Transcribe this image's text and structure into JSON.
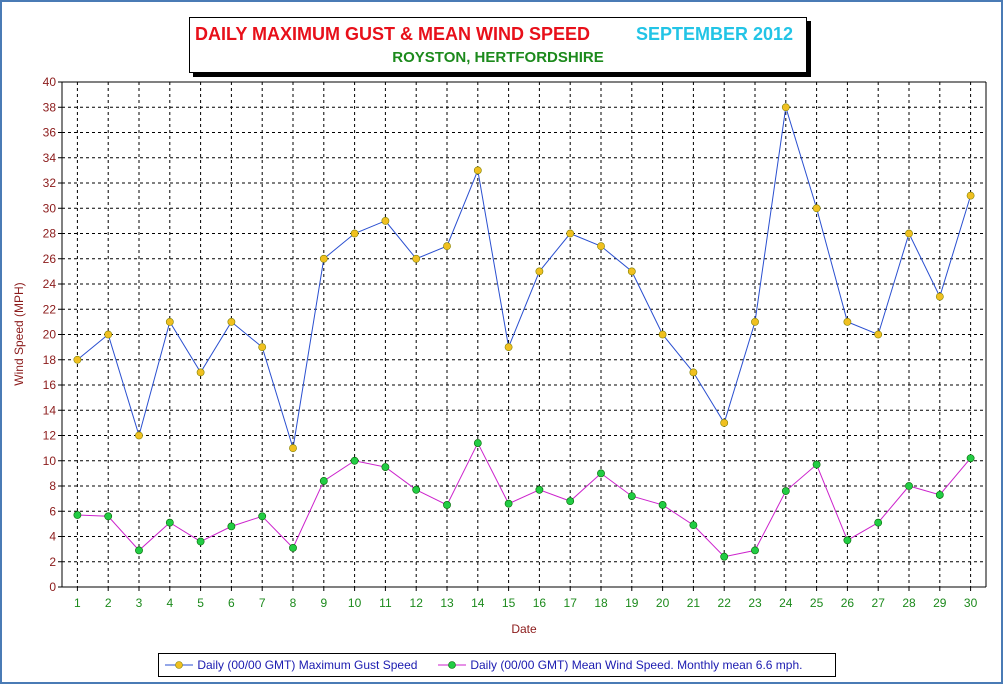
{
  "title": {
    "main": "DAILY MAXIMUM GUST & MEAN WIND SPEED",
    "month": "SEPTEMBER 2012",
    "location": "ROYSTON, HERTFORDSHIRE"
  },
  "colors": {
    "gust_line": "#2a4fd0",
    "mean_line": "#cc22cc",
    "gust_marker": "#f0c020",
    "mean_marker": "#22cc44",
    "grid": "#000000",
    "tick_y": "#8b1a1a",
    "tick_x": "#1c8a1c",
    "legend_text": "#1a1ab0"
  },
  "chart_data": {
    "type": "line",
    "xlabel": "Date",
    "ylabel": "Wind Speed (MPH)",
    "ylim": [
      0,
      40
    ],
    "yticks": [
      0,
      2,
      4,
      6,
      8,
      10,
      12,
      14,
      16,
      18,
      20,
      22,
      24,
      26,
      28,
      30,
      32,
      34,
      36,
      38,
      40
    ],
    "grid": true,
    "legend_position": "bottom",
    "x": [
      1,
      2,
      3,
      4,
      5,
      6,
      7,
      8,
      9,
      10,
      11,
      12,
      13,
      14,
      15,
      16,
      17,
      18,
      19,
      20,
      21,
      22,
      23,
      24,
      25,
      26,
      27,
      28,
      29,
      30
    ],
    "series": [
      {
        "name": "Daily (00/00 GMT) Maximum Gust Speed",
        "values": [
          18,
          20,
          12,
          21,
          17,
          21,
          19,
          11,
          26,
          28,
          29,
          26,
          27,
          33,
          19,
          25,
          28,
          27,
          25,
          20,
          17,
          13,
          21,
          38,
          30,
          21,
          20,
          28,
          23,
          31
        ]
      },
      {
        "name": "Daily (00/00 GMT) Mean Wind Speed. Monthly mean 6.6 mph.",
        "values": [
          5.7,
          5.6,
          2.9,
          5.1,
          3.6,
          4.8,
          5.6,
          3.1,
          8.4,
          10.0,
          9.5,
          7.7,
          6.5,
          11.4,
          6.6,
          7.7,
          6.8,
          9.0,
          7.2,
          6.5,
          4.9,
          2.4,
          2.9,
          7.6,
          9.7,
          3.7,
          5.1,
          8.0,
          7.3,
          10.2
        ]
      }
    ]
  }
}
